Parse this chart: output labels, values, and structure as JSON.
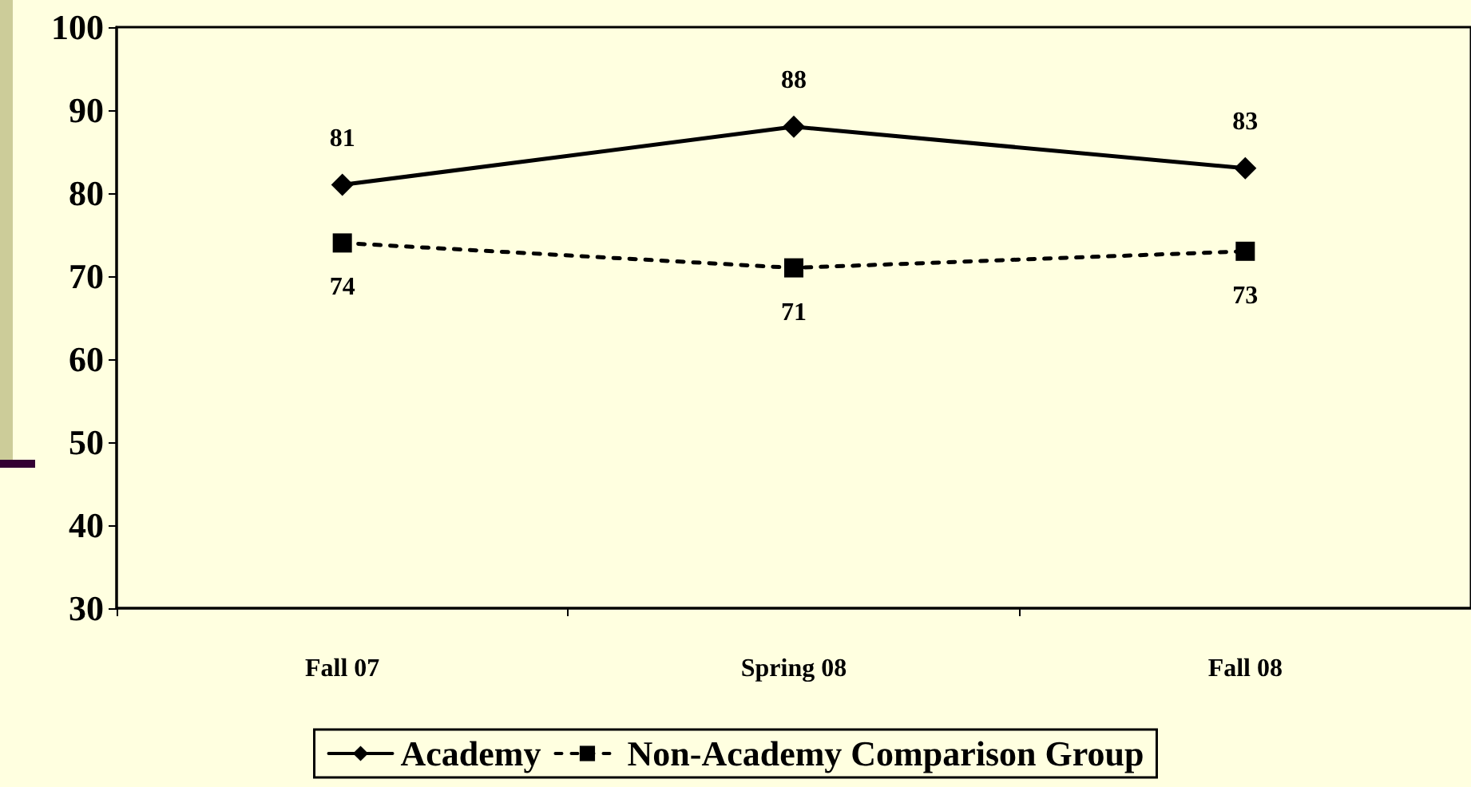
{
  "chart_data": {
    "type": "line",
    "categories": [
      "Fall 07",
      "Spring 08",
      "Fall 08"
    ],
    "series": [
      {
        "name": "Academy",
        "color": "#000000",
        "values": [
          81,
          88,
          83
        ],
        "marker": "diamond",
        "line_style": "solid"
      },
      {
        "name": "Non-Academy Comparison Group",
        "color": "#000000",
        "values": [
          74,
          71,
          73
        ],
        "marker": "square",
        "line_style": "dashed"
      }
    ],
    "ylim": [
      30,
      100
    ],
    "yticks": [
      30,
      40,
      50,
      60,
      70,
      80,
      90,
      100
    ],
    "grid": false,
    "legend": "bottom",
    "data_labels": true
  }
}
